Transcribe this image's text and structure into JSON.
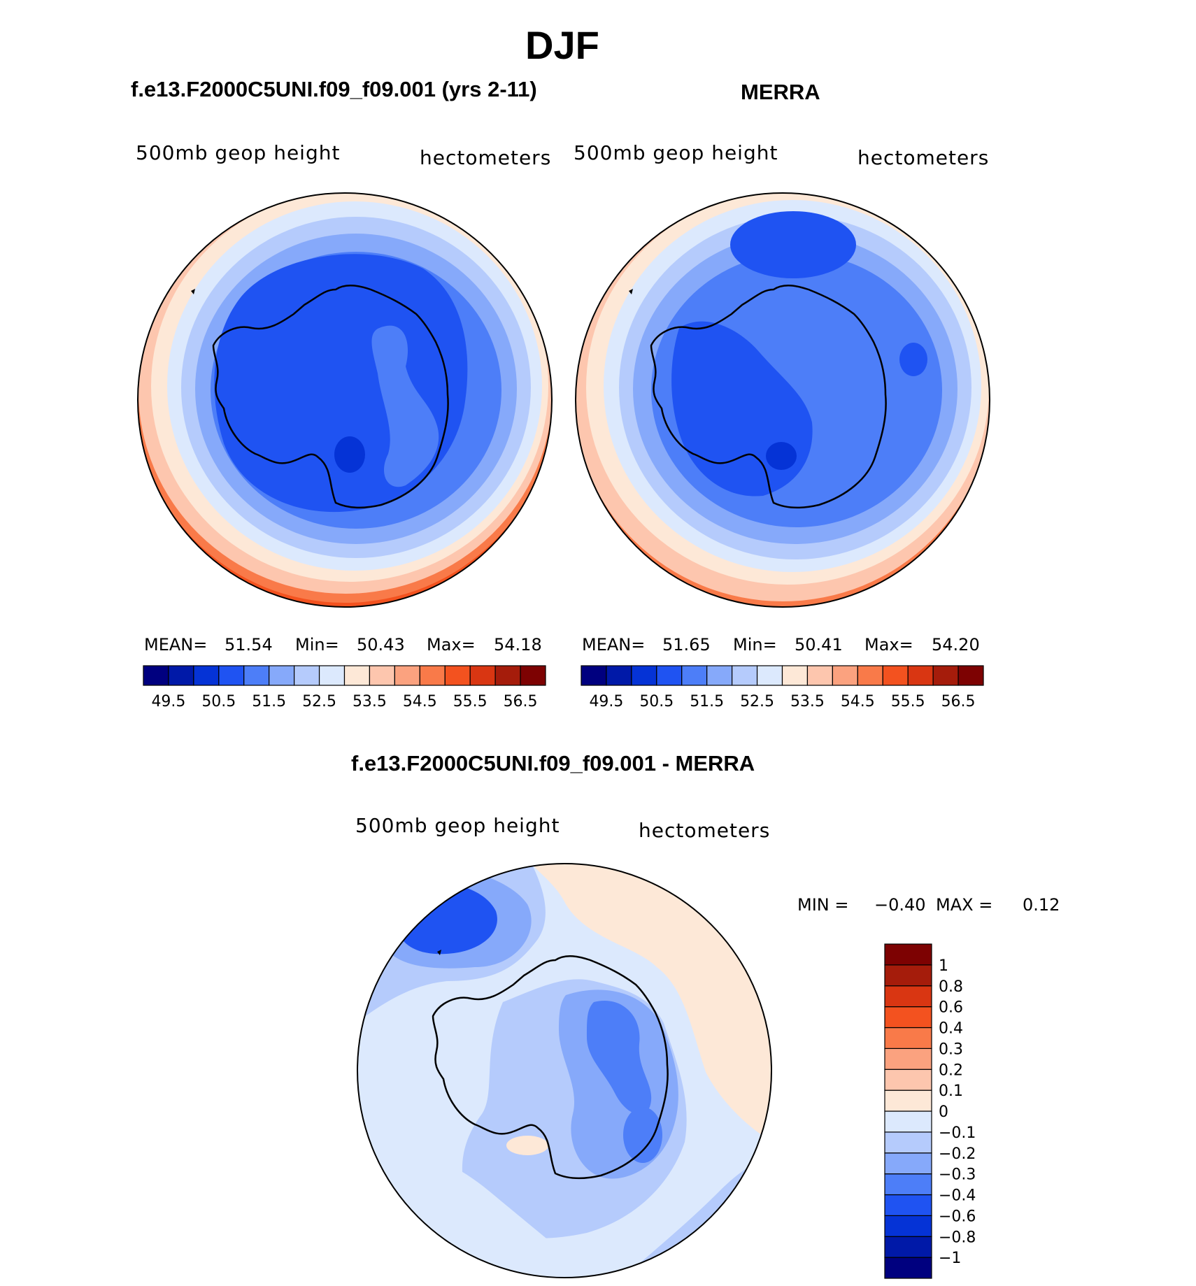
{
  "title": "DJF",
  "panels": {
    "model": {
      "title": "f.e13.F2000C5UNI.f09_f09.001 (yrs 2-11)",
      "left_label": "500mb geop height",
      "right_label": "hectometers",
      "mean_label": "MEAN=",
      "mean": "51.54",
      "min_label": "Min=",
      "min": "50.43",
      "max_label": "Max=",
      "max": "54.18"
    },
    "obs": {
      "title": "MERRA",
      "left_label": "500mb geop height",
      "right_label": "hectometers",
      "mean_label": "MEAN=",
      "mean": "51.65",
      "min_label": "Min=",
      "min": "50.41",
      "max_label": "Max=",
      "max": "54.20"
    },
    "diff": {
      "title": "f.e13.F2000C5UNI.f09_f09.001 - MERRA",
      "left_label": "500mb geop height",
      "right_label": "hectometers",
      "min_label": "MIN =",
      "min": "−0.40",
      "max_label": "MAX =",
      "max": "0.12"
    }
  },
  "chart_data": [
    {
      "type": "heatmap",
      "name": "model",
      "projection": "south-polar-stereographic",
      "field": "500mb geopotential height",
      "units": "hectometers",
      "mean": 51.54,
      "min": 50.43,
      "max": 54.18,
      "colorbar": {
        "orientation": "horizontal",
        "levels": [
          49.5,
          50.0,
          50.5,
          51.0,
          51.5,
          52.0,
          52.5,
          53.0,
          53.5,
          54.0,
          54.5,
          55.0,
          55.5,
          56.0,
          56.5
        ],
        "tick_labels": [
          "49.5",
          "50.5",
          "51.5",
          "52.5",
          "53.5",
          "54.5",
          "55.5",
          "56.5"
        ],
        "colors": [
          "#00007f",
          "#0019a8",
          "#0533d6",
          "#1f53f2",
          "#4d7ef8",
          "#86a9fa",
          "#b5cbfc",
          "#dce9fd",
          "#fde8d7",
          "#fdc6ae",
          "#fba27f",
          "#f97a49",
          "#f3521f",
          "#d93612",
          "#a51c0b",
          "#7d0202"
        ]
      }
    },
    {
      "type": "heatmap",
      "name": "obs",
      "projection": "south-polar-stereographic",
      "field": "500mb geopotential height",
      "units": "hectometers",
      "mean": 51.65,
      "min": 50.41,
      "max": 54.2,
      "colorbar": {
        "orientation": "horizontal",
        "levels": [
          49.5,
          50.0,
          50.5,
          51.0,
          51.5,
          52.0,
          52.5,
          53.0,
          53.5,
          54.0,
          54.5,
          55.0,
          55.5,
          56.0,
          56.5
        ],
        "tick_labels": [
          "49.5",
          "50.5",
          "51.5",
          "52.5",
          "53.5",
          "54.5",
          "55.5",
          "56.5"
        ],
        "colors": [
          "#00007f",
          "#0019a8",
          "#0533d6",
          "#1f53f2",
          "#4d7ef8",
          "#86a9fa",
          "#b5cbfc",
          "#dce9fd",
          "#fde8d7",
          "#fdc6ae",
          "#fba27f",
          "#f97a49",
          "#f3521f",
          "#d93612",
          "#a51c0b",
          "#7d0202"
        ]
      }
    },
    {
      "type": "heatmap",
      "name": "diff",
      "projection": "south-polar-stereographic",
      "field": "500mb geopotential height difference",
      "units": "hectometers",
      "min": -0.4,
      "max": 0.12,
      "colorbar": {
        "orientation": "vertical",
        "levels": [
          -1,
          -0.8,
          -0.6,
          -0.4,
          -0.3,
          -0.2,
          -0.1,
          0,
          0.1,
          0.2,
          0.3,
          0.4,
          0.6,
          0.8,
          1
        ],
        "tick_labels": [
          "−1",
          "−0.8",
          "−0.6",
          "−0.4",
          "−0.3",
          "−0.2",
          "−0.1",
          "0",
          "0.1",
          "0.2",
          "0.3",
          "0.4",
          "0.6",
          "0.8",
          "1"
        ],
        "colors": [
          "#00007f",
          "#0019a8",
          "#0533d6",
          "#1f53f2",
          "#4d7ef8",
          "#86a9fa",
          "#b5cbfc",
          "#dce9fd",
          "#fde8d7",
          "#fdc6ae",
          "#fba27f",
          "#f97a49",
          "#f3521f",
          "#d93612",
          "#a51c0b",
          "#7d0202"
        ]
      }
    }
  ]
}
